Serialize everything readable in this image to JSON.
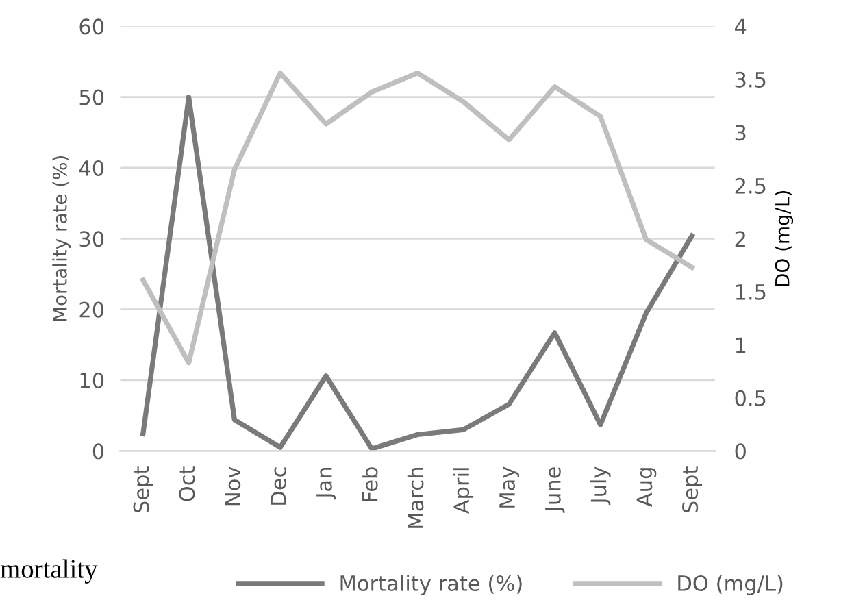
{
  "chart_data": {
    "type": "line",
    "categories": [
      "Sept",
      "Oct",
      "Nov",
      "Dec",
      "Jan",
      "Feb",
      "March",
      "April",
      "May",
      "June",
      "July",
      "Aug",
      "Sept"
    ],
    "series": [
      {
        "name": "Mortality rate (%)",
        "color": "#7a7a7a",
        "values": [
          2.4,
          50,
          4.4,
          0.5,
          10.6,
          0.3,
          2.3,
          3.0,
          6.6,
          16.7,
          3.7,
          19.5,
          30.4
        ]
      },
      {
        "name": "DO (mg/L)",
        "color": "#bfbfbf",
        "axis": "y2",
        "values": [
          1.61,
          0.83,
          2.65,
          3.56,
          3.08,
          3.38,
          3.56,
          3.29,
          2.93,
          3.43,
          3.15,
          1.99,
          1.73
        ]
      }
    ],
    "ylabel": "Mortality rate (%)",
    "y2label": "DO (mg/L)",
    "ylim": [
      0,
      60
    ],
    "yticks": [
      0,
      10,
      20,
      30,
      40,
      50,
      60
    ],
    "y2lim": [
      0,
      4
    ],
    "y2ticks": [
      0,
      {
        "value": 0.5,
        "label": "0.5"
      },
      1,
      {
        "value": 1.5,
        "label": "1.5"
      },
      2,
      {
        "value": 2.5,
        "label": "2.5"
      },
      3,
      {
        "value": 3.5,
        "label": "3.5"
      },
      4
    ],
    "grid": "y",
    "legend": "bottom",
    "marker": "none",
    "line_style": "solid",
    "annotations": [
      "mortality"
    ]
  }
}
